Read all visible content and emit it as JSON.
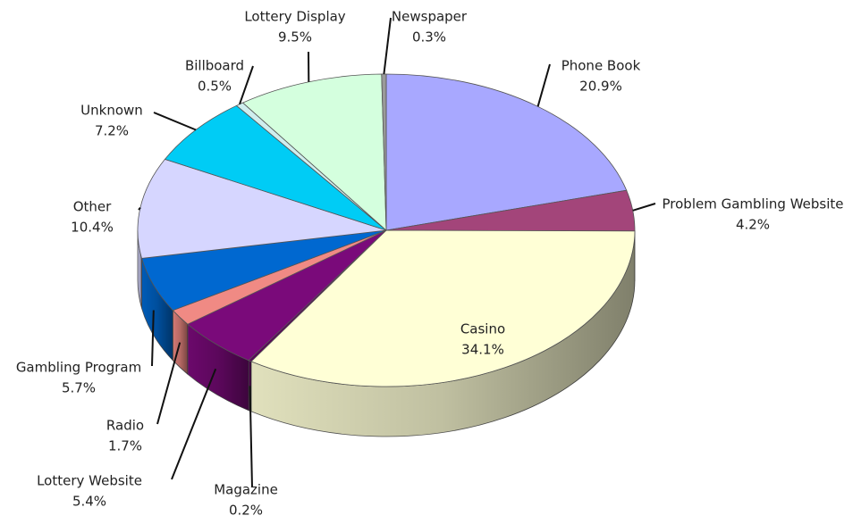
{
  "chart_data": {
    "type": "pie3d",
    "categories": [
      "Phone Book",
      "Problem Gambling Website",
      "Casino",
      "Magazine",
      "Lottery Website",
      "Radio",
      "Gambling Program",
      "Other",
      "Unknown",
      "Billboard",
      "Lottery Display",
      "Newspaper"
    ],
    "values": [
      20.9,
      4.2,
      34.1,
      0.2,
      5.4,
      1.7,
      5.7,
      10.4,
      7.2,
      0.5,
      9.5,
      0.3
    ],
    "value_labels": [
      "20.9%",
      "4.2%",
      "34.1%",
      "0.2%",
      "5.4%",
      "1.7%",
      "5.7%",
      "10.4%",
      "7.2%",
      "0.5%",
      "9.5%",
      "0.3%"
    ],
    "colors": [
      "#a8a8ff",
      "#a3457a",
      "#ffffd6",
      "#5a005a",
      "#7a0a7a",
      "#f08a84",
      "#0068d0",
      "#d6d6ff",
      "#00ccf5",
      "#cfeeee",
      "#d4ffde",
      "#9a9a9a"
    ]
  }
}
